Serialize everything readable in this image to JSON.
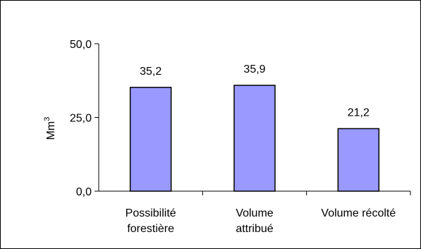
{
  "chart_data": {
    "type": "bar",
    "categories": [
      [
        "Possibilité",
        "forestière"
      ],
      [
        "Volume",
        "attribué"
      ],
      [
        "Volume récolté"
      ]
    ],
    "values": [
      35.2,
      35.9,
      21.2
    ],
    "data_labels": [
      "35,2",
      "35,9",
      "21,2"
    ],
    "title": "",
    "xlabel": "",
    "ylabel": "Mm",
    "ylabel_superscript": "3",
    "ylim": [
      0,
      50
    ],
    "yticks": [
      0,
      25,
      50
    ],
    "ytick_labels": [
      "0,0",
      "25,0",
      "50,0"
    ],
    "grid": false,
    "legend": "none",
    "colors": {
      "bar_fill": "#9999ff",
      "bar_stroke": "#000000",
      "axis": "#000000"
    }
  }
}
